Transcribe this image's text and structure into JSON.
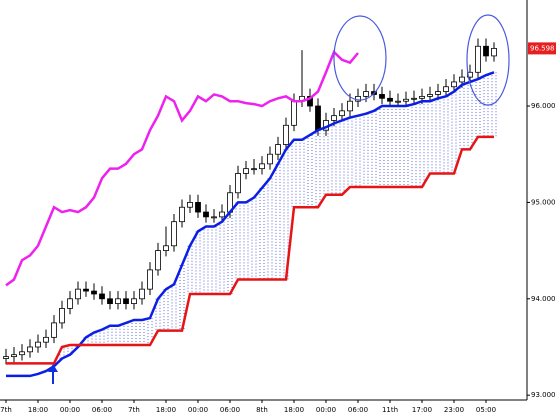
{
  "chart_data": {
    "type": "candlestick",
    "categories": [
      "7th",
      null,
      null,
      null,
      "18:00",
      null,
      null,
      null,
      "00:00",
      null,
      null,
      null,
      "06:00",
      null,
      null,
      null,
      "7th",
      null,
      null,
      null,
      "18:00",
      null,
      null,
      null,
      "00:00",
      null,
      null,
      null,
      "06:00",
      null,
      null,
      null,
      "8th",
      null,
      null,
      null,
      "18:00",
      null,
      null,
      null,
      "00:00",
      null,
      null,
      null,
      "06:00",
      null,
      null,
      null,
      "11th",
      null,
      null,
      null,
      "17:00",
      null,
      null,
      null,
      "23:00",
      null,
      null,
      null,
      "05:00",
      null
    ],
    "open": [
      93.38,
      93.4,
      93.42,
      93.45,
      93.5,
      93.55,
      93.6,
      93.75,
      93.9,
      94.0,
      94.1,
      94.08,
      94.05,
      94.0,
      93.95,
      94.0,
      93.95,
      94.0,
      94.1,
      94.3,
      94.5,
      94.55,
      94.8,
      94.95,
      95.0,
      94.9,
      94.85,
      94.85,
      94.9,
      95.1,
      95.3,
      95.35,
      95.35,
      95.4,
      95.5,
      95.6,
      95.8,
      96.05,
      96.1,
      96.0,
      95.75,
      95.85,
      95.9,
      95.95,
      96.05,
      96.1,
      96.15,
      96.12,
      96.08,
      96.05,
      96.05,
      96.07,
      96.08,
      96.1,
      96.12,
      96.15,
      96.2,
      96.25,
      96.3,
      96.35,
      96.62,
      96.52
    ],
    "high": [
      93.48,
      93.5,
      93.53,
      93.58,
      93.63,
      93.68,
      93.83,
      93.98,
      94.08,
      94.18,
      94.18,
      94.16,
      94.13,
      94.08,
      94.08,
      94.08,
      94.08,
      94.18,
      94.38,
      94.58,
      94.75,
      94.88,
      95.03,
      95.08,
      95.08,
      94.98,
      94.93,
      94.98,
      95.18,
      95.38,
      95.43,
      95.45,
      95.48,
      95.58,
      95.68,
      95.88,
      96.13,
      96.58,
      96.18,
      96.08,
      95.93,
      95.98,
      96.03,
      96.13,
      96.18,
      96.23,
      96.23,
      96.2,
      96.16,
      96.13,
      96.15,
      96.16,
      96.18,
      96.2,
      96.23,
      96.28,
      96.33,
      96.38,
      96.43,
      96.7,
      96.7,
      96.66
    ],
    "low": [
      93.32,
      93.34,
      93.36,
      93.39,
      93.44,
      93.49,
      93.54,
      93.69,
      93.84,
      93.94,
      94.02,
      93.99,
      93.94,
      93.89,
      93.89,
      93.89,
      93.89,
      93.94,
      94.04,
      94.24,
      94.44,
      94.49,
      94.74,
      94.89,
      94.84,
      94.79,
      94.79,
      94.79,
      94.84,
      95.04,
      95.24,
      95.29,
      95.29,
      95.34,
      95.44,
      95.54,
      95.74,
      95.99,
      95.94,
      95.69,
      95.69,
      95.79,
      95.84,
      95.89,
      95.99,
      96.04,
      96.06,
      96.02,
      95.99,
      95.99,
      95.99,
      96.01,
      96.02,
      96.04,
      96.06,
      96.09,
      96.14,
      96.19,
      96.24,
      96.29,
      96.46,
      96.46
    ],
    "close": [
      93.4,
      93.42,
      93.45,
      93.5,
      93.55,
      93.6,
      93.75,
      93.9,
      94.0,
      94.1,
      94.08,
      94.05,
      94.0,
      93.95,
      94.0,
      93.95,
      94.0,
      94.1,
      94.3,
      94.5,
      94.55,
      94.8,
      94.95,
      95.0,
      94.9,
      94.85,
      94.85,
      94.9,
      95.1,
      95.3,
      95.35,
      95.35,
      95.4,
      95.5,
      95.6,
      95.8,
      96.05,
      96.1,
      96.0,
      95.75,
      95.85,
      95.9,
      95.95,
      96.05,
      96.1,
      96.15,
      96.12,
      96.08,
      96.05,
      96.05,
      96.07,
      96.08,
      96.1,
      96.12,
      96.15,
      96.2,
      96.25,
      96.3,
      96.35,
      96.62,
      96.52,
      96.598
    ],
    "series": [
      {
        "color": "#ee22ee",
        "values": [
          94.14,
          94.2,
          94.4,
          94.45,
          94.55,
          94.75,
          94.95,
          94.9,
          94.92,
          94.9,
          94.95,
          95.05,
          95.25,
          95.35,
          95.35,
          95.4,
          95.5,
          95.55,
          95.75,
          95.9,
          96.1,
          96.05,
          95.85,
          95.95,
          96.1,
          96.05,
          96.12,
          96.1,
          96.05,
          96.05,
          96.03,
          96.02,
          96.0,
          96.05,
          96.08,
          96.1,
          96.05,
          96.05,
          96.08,
          96.15,
          96.35,
          96.56,
          96.48,
          96.45,
          96.55,
          null,
          null,
          null,
          null,
          null,
          null,
          null,
          null,
          null,
          null,
          null,
          null,
          null,
          null,
          null,
          null,
          null
        ]
      },
      {
        "color": "#0a1ee6",
        "values": [
          93.2,
          93.2,
          93.2,
          93.2,
          93.22,
          93.25,
          93.3,
          93.38,
          93.42,
          93.5,
          93.6,
          93.65,
          93.68,
          93.72,
          93.72,
          93.75,
          93.78,
          93.78,
          93.8,
          94.0,
          94.1,
          94.15,
          94.35,
          94.55,
          94.7,
          94.75,
          94.75,
          94.8,
          94.9,
          95.0,
          95.0,
          95.05,
          95.15,
          95.25,
          95.4,
          95.55,
          95.65,
          95.65,
          95.7,
          95.75,
          95.78,
          95.82,
          95.85,
          95.88,
          95.9,
          95.92,
          95.95,
          96.0,
          96.0,
          96.0,
          96.0,
          96.02,
          96.05,
          96.05,
          96.08,
          96.1,
          96.15,
          96.22,
          96.25,
          96.28,
          96.32,
          96.35
        ]
      },
      {
        "color": "#e61414",
        "values": [
          93.33,
          93.33,
          93.33,
          93.33,
          93.33,
          93.33,
          93.33,
          93.5,
          93.52,
          93.52,
          93.52,
          93.52,
          93.52,
          93.52,
          93.52,
          93.52,
          93.52,
          93.52,
          93.52,
          93.67,
          93.67,
          93.67,
          93.67,
          94.05,
          94.05,
          94.05,
          94.05,
          94.05,
          94.05,
          94.2,
          94.2,
          94.2,
          94.2,
          94.2,
          94.2,
          94.2,
          94.95,
          94.95,
          94.95,
          94.95,
          95.08,
          95.08,
          95.08,
          95.16,
          95.16,
          95.16,
          95.16,
          95.16,
          95.16,
          95.16,
          95.16,
          95.16,
          95.16,
          95.3,
          95.3,
          95.3,
          95.3,
          95.55,
          95.55,
          95.68,
          95.68,
          95.68
        ]
      }
    ],
    "current_price": 96.598,
    "current_price_color": "#e62020",
    "ylim": [
      92.95,
      97.1
    ],
    "yticks": [
      {
        "value": 93,
        "label": "93.000"
      },
      {
        "value": 94,
        "label": "94.000"
      },
      {
        "value": 95,
        "label": "95.000"
      },
      {
        "value": 96,
        "label": "96.000"
      }
    ]
  }
}
